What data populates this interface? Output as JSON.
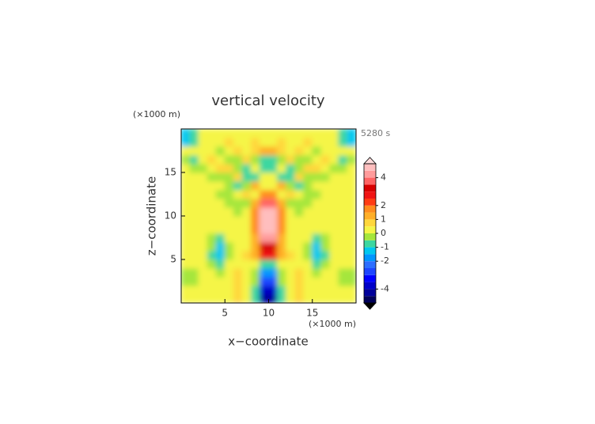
{
  "chart_data": {
    "type": "contour",
    "title": "vertical velocity",
    "time_label": "5280 s",
    "x_label": "x−coordinate",
    "y_label": "z−coordinate",
    "x_unit": "(×1000 m)",
    "y_unit": "(×1000 m)",
    "xlim": [
      0,
      20
    ],
    "ylim": [
      0,
      20
    ],
    "xticks": [
      5,
      10,
      15
    ],
    "yticks": [
      5,
      10,
      15
    ],
    "x": [
      0.5,
      1.5,
      2.5,
      3.5,
      4.5,
      5.5,
      6.5,
      7.5,
      8.5,
      9.5,
      10.5,
      11.5,
      12.5,
      13.5,
      14.5,
      15.5,
      16.5,
      17.5,
      18.5,
      19.5
    ],
    "y": [
      0.5,
      1.5,
      2.5,
      3.5,
      4.5,
      5.5,
      6.5,
      7.5,
      8.5,
      9.5,
      10.5,
      11.5,
      12.5,
      13.5,
      14.5,
      15.5,
      16.5,
      17.5,
      18.5,
      19.5
    ],
    "z": [
      [
        0.3,
        0.3,
        0.2,
        0.4,
        0.3,
        0.2,
        0.6,
        0.2,
        -0.8,
        -4.2,
        -4.2,
        -0.8,
        0.2,
        0.6,
        0.2,
        0.3,
        0.4,
        0.2,
        0.3,
        0.3
      ],
      [
        0.4,
        0.2,
        0.1,
        0.3,
        0.2,
        0.3,
        0.8,
        0.3,
        -0.6,
        -3.8,
        -3.8,
        -0.6,
        0.3,
        0.8,
        0.3,
        0.2,
        0.3,
        0.1,
        0.2,
        0.4
      ],
      [
        -0.3,
        -0.2,
        0.2,
        0.1,
        0.3,
        0.4,
        0.9,
        0.4,
        -0.4,
        -3.0,
        -3.0,
        -0.4,
        0.4,
        0.9,
        0.4,
        0.3,
        0.1,
        0.2,
        -0.2,
        -0.3
      ],
      [
        -0.4,
        -0.3,
        0.1,
        0.2,
        -0.2,
        0.3,
        0.5,
        0.3,
        -0.2,
        -1.8,
        -1.8,
        -0.2,
        0.3,
        0.5,
        0.3,
        -0.2,
        0.2,
        0.1,
        -0.3,
        -0.4
      ],
      [
        0.2,
        0.1,
        0.3,
        -0.4,
        -0.6,
        0.1,
        0.2,
        0.1,
        0.2,
        -0.6,
        -0.6,
        0.2,
        0.1,
        0.2,
        0.1,
        -0.6,
        -0.4,
        0.3,
        0.1,
        0.2
      ],
      [
        0.3,
        0.2,
        0.1,
        -0.6,
        -1.1,
        -0.2,
        0.3,
        0.5,
        1.0,
        2.6,
        2.6,
        1.0,
        0.5,
        0.3,
        -0.2,
        -1.1,
        -0.6,
        0.1,
        0.2,
        0.3
      ],
      [
        0.2,
        0.3,
        0.2,
        -0.5,
        -1.2,
        -0.3,
        0.2,
        0.4,
        1.2,
        3.4,
        3.4,
        1.2,
        0.4,
        0.2,
        -0.3,
        -1.2,
        -0.5,
        0.2,
        0.3,
        0.2
      ],
      [
        0.3,
        0.2,
        0.3,
        -0.2,
        -0.6,
        0.1,
        0.3,
        0.3,
        1.4,
        4.0,
        4.0,
        1.4,
        0.3,
        0.3,
        0.1,
        -0.6,
        -0.2,
        0.3,
        0.2,
        0.3
      ],
      [
        0.2,
        0.3,
        0.2,
        0.1,
        0.0,
        0.3,
        0.2,
        0.2,
        1.6,
        4.6,
        4.6,
        1.6,
        0.2,
        0.2,
        0.3,
        0.0,
        0.1,
        0.2,
        0.3,
        0.2
      ],
      [
        0.3,
        0.2,
        0.3,
        0.2,
        0.3,
        0.2,
        0.1,
        0.1,
        1.7,
        4.8,
        4.8,
        1.7,
        0.1,
        0.1,
        0.2,
        0.3,
        0.2,
        0.3,
        0.2,
        0.3
      ],
      [
        0.2,
        0.3,
        0.2,
        0.3,
        0.2,
        0.1,
        -0.2,
        0.0,
        1.5,
        4.6,
        4.6,
        1.5,
        0.0,
        -0.2,
        0.1,
        0.2,
        0.3,
        0.2,
        0.3,
        0.2
      ],
      [
        0.3,
        0.2,
        0.3,
        0.2,
        0.1,
        -0.2,
        -0.4,
        -0.2,
        1.2,
        3.6,
        3.6,
        1.2,
        -0.2,
        -0.4,
        -0.2,
        0.1,
        0.2,
        0.3,
        0.2,
        0.3
      ],
      [
        0.2,
        0.3,
        0.2,
        0.1,
        -0.1,
        -0.3,
        0.2,
        0.6,
        0.2,
        1.8,
        1.8,
        0.2,
        0.6,
        0.2,
        -0.3,
        -0.1,
        0.1,
        0.2,
        0.3,
        0.2
      ],
      [
        0.3,
        0.2,
        0.1,
        0.3,
        0.2,
        -0.4,
        -0.8,
        -0.3,
        1.0,
        0.4,
        0.4,
        1.0,
        -0.3,
        -0.8,
        -0.4,
        0.2,
        0.3,
        0.1,
        0.2,
        0.3
      ],
      [
        0.2,
        0.3,
        0.2,
        -0.2,
        -0.5,
        -0.2,
        0.8,
        -0.6,
        -0.8,
        0.3,
        0.3,
        -0.8,
        -0.6,
        0.8,
        -0.2,
        -0.5,
        -0.2,
        0.2,
        0.3,
        0.2
      ],
      [
        0.3,
        -0.3,
        -0.5,
        0.2,
        0.8,
        0.9,
        -0.5,
        -1.0,
        0.2,
        -0.6,
        -0.6,
        0.2,
        -1.0,
        -0.5,
        0.9,
        0.8,
        0.2,
        -0.5,
        -0.3,
        0.3
      ],
      [
        -0.4,
        -0.6,
        0.3,
        0.9,
        0.3,
        -0.4,
        -0.2,
        0.7,
        -0.3,
        -1.0,
        -1.0,
        -0.3,
        0.7,
        -0.2,
        -0.4,
        0.3,
        0.9,
        0.3,
        -0.6,
        -0.4
      ],
      [
        0.2,
        0.3,
        0.4,
        0.2,
        -0.3,
        0.3,
        0.9,
        0.4,
        0.8,
        1.0,
        1.0,
        0.8,
        0.4,
        0.9,
        0.3,
        -0.3,
        0.2,
        0.4,
        0.3,
        0.2
      ],
      [
        -1.2,
        -0.6,
        0.2,
        0.3,
        0.4,
        0.6,
        0.2,
        0.3,
        0.5,
        0.4,
        0.4,
        0.5,
        0.3,
        0.2,
        0.6,
        0.4,
        0.3,
        0.2,
        -0.6,
        -1.2
      ],
      [
        -1.5,
        -0.8,
        0.3,
        0.2,
        0.3,
        0.2,
        0.3,
        0.2,
        0.3,
        0.3,
        0.3,
        0.3,
        0.2,
        0.3,
        0.2,
        0.3,
        0.2,
        0.3,
        -0.8,
        -1.5
      ]
    ],
    "colorbar": {
      "lim": [
        -5,
        5
      ],
      "levels": [
        -5,
        -4.5,
        -4,
        -3.5,
        -3,
        -2.5,
        -2,
        -1.5,
        -1,
        -0.5,
        0,
        0.5,
        1,
        1.5,
        2,
        2.5,
        3,
        3.5,
        4,
        4.5,
        5
      ],
      "colors": [
        "#00005a",
        "#00009b",
        "#0000c8",
        "#0000ff",
        "#1e46ff",
        "#2d6eff",
        "#0096ff",
        "#00c8f0",
        "#3cd7a0",
        "#a5e63c",
        "#f5f546",
        "#ffd73c",
        "#ffaf28",
        "#ff8c1e",
        "#ff3c14",
        "#f01414",
        "#d70000",
        "#ff6464",
        "#ff9b9b",
        "#ffbebe"
      ],
      "under": "#000000",
      "over": "#ffdcdc",
      "ticks": [
        -4,
        -2,
        -1,
        0,
        1,
        2,
        4
      ]
    }
  }
}
